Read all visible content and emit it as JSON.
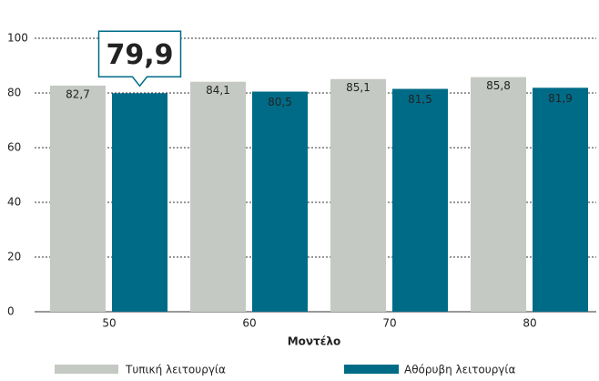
{
  "chart_data": {
    "type": "bar",
    "x_label": "Μοντέλο",
    "categories": [
      "50",
      "60",
      "70",
      "80"
    ],
    "series": [
      {
        "name": "Τυπική λειτουργία",
        "color": "#c5c9c3",
        "values": [
          82.7,
          84.1,
          85.1,
          85.8
        ],
        "value_labels": [
          "82,7",
          "84,1",
          "85,1",
          "85,8"
        ]
      },
      {
        "name": "Αθόρυβη λειτουργία",
        "color": "#006b87",
        "values": [
          79.9,
          80.5,
          81.5,
          81.9
        ],
        "value_labels": [
          "79,9",
          "80,5",
          "81,5",
          "81,9"
        ]
      }
    ],
    "highlight": {
      "series": 1,
      "index": 0
    },
    "ylim": [
      0,
      100
    ],
    "yticks": [
      0,
      20,
      40,
      60,
      80,
      100
    ],
    "grid": true
  }
}
